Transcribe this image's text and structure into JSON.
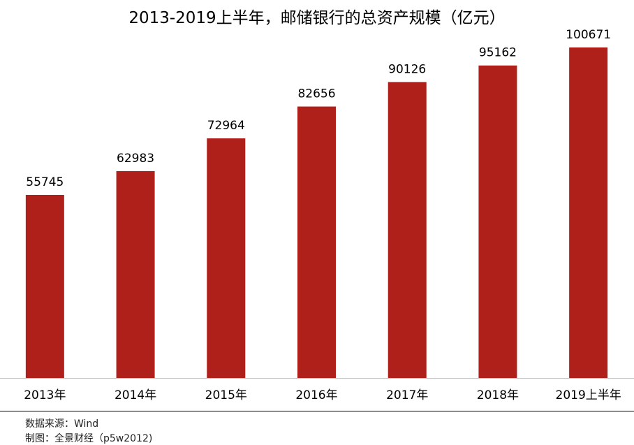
{
  "title": "2013-2019上半年，邮储银行的总资产规模（亿元）",
  "colors": {
    "bar": "#b0201a",
    "axis": "#bfbfbf",
    "divider": "#000000"
  },
  "chart_data": {
    "type": "bar",
    "title": "2013-2019上半年，邮储银行的总资产规模（亿元）",
    "categories": [
      "2013年",
      "2014年",
      "2015年",
      "2016年",
      "2017年",
      "2018年",
      "2019上半年"
    ],
    "values": [
      55745,
      62983,
      72964,
      82656,
      90126,
      95162,
      100671
    ],
    "ylim": [
      0,
      110000
    ],
    "grid": false,
    "legend": "none",
    "data_labels": true
  },
  "footer": {
    "source": "数据来源：Wind",
    "made_by": "制图：全景财经（p5w2012)"
  }
}
